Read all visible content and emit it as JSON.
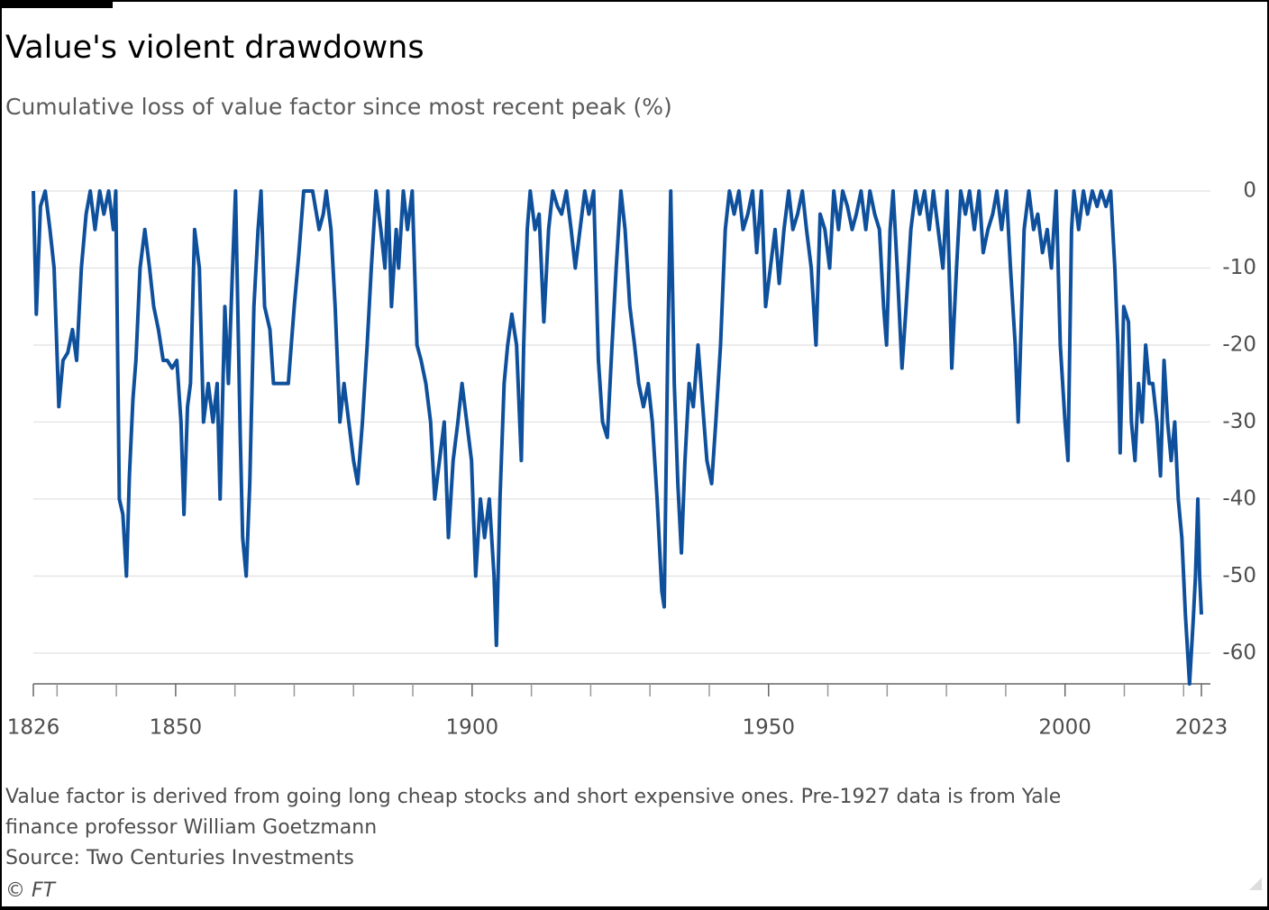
{
  "chart_data": {
    "type": "line",
    "title": "Value's violent drawdowns",
    "subtitle": "Cumulative loss of value factor since most recent peak (%)",
    "notes": [
      "Value factor is derived from going long cheap stocks and short expensive ones. Pre-1927 data is from Yale",
      "finance professor William Goetzmann",
      "Source: Two Centuries Investments"
    ],
    "credit": "© FT",
    "xlim": [
      1826,
      2023
    ],
    "xticks": [
      1826,
      1850,
      1900,
      1950,
      2000,
      2023
    ],
    "xminorticks": [
      1830,
      1840,
      1860,
      1870,
      1880,
      1890,
      1910,
      1920,
      1930,
      1940,
      1960,
      1970,
      1980,
      1990,
      2010,
      2020
    ],
    "ylim": [
      -64,
      0
    ],
    "yticks": [
      0,
      -10,
      -20,
      -30,
      -40,
      -50,
      -60
    ],
    "grid": true,
    "series": [
      {
        "color": "#0f509c",
        "x": [
          1826.0,
          1826.5,
          1827.2,
          1828.0,
          1828.8,
          1829.5,
          1830.3,
          1831.0,
          1831.8,
          1832.6,
          1833.3,
          1834.1,
          1834.9,
          1835.6,
          1836.4,
          1837.2,
          1837.9,
          1838.7,
          1839.5,
          1839.9,
          1840.5,
          1841.1,
          1841.7,
          1842.2,
          1842.8,
          1843.3,
          1844.0,
          1844.8,
          1845.6,
          1846.3,
          1847.1,
          1847.9,
          1848.6,
          1849.4,
          1850.2,
          1850.9,
          1851.4,
          1852.0,
          1852.5,
          1853.2,
          1854.0,
          1854.7,
          1855.5,
          1856.3,
          1857.0,
          1857.5,
          1858.3,
          1858.9,
          1859.6,
          1860.1,
          1860.9,
          1861.3,
          1861.9,
          1862.5,
          1863.2,
          1863.9,
          1864.4,
          1865.0,
          1865.9,
          1866.5,
          1867.7,
          1869.0,
          1870.0,
          1870.8,
          1871.6,
          1873.1,
          1874.2,
          1874.9,
          1875.4,
          1876.2,
          1876.9,
          1877.7,
          1878.4,
          1879.2,
          1880.0,
          1880.7,
          1881.5,
          1882.3,
          1883.0,
          1883.8,
          1884.6,
          1885.3,
          1885.8,
          1886.4,
          1887.2,
          1887.6,
          1888.4,
          1889.1,
          1889.9,
          1890.7,
          1891.4,
          1892.2,
          1893.0,
          1893.7,
          1894.5,
          1895.3,
          1896.0,
          1896.8,
          1897.6,
          1898.3,
          1899.1,
          1899.9,
          1900.6,
          1901.4,
          1902.1,
          1902.9,
          1903.7,
          1904.1,
          1904.7,
          1905.4,
          1906.0,
          1906.7,
          1907.5,
          1908.3,
          1908.7,
          1909.3,
          1909.8,
          1910.6,
          1911.3,
          1912.1,
          1912.9,
          1913.6,
          1914.4,
          1915.1,
          1915.9,
          1916.7,
          1917.4,
          1918.2,
          1919.0,
          1919.7,
          1920.5,
          1921.3,
          1922.0,
          1922.8,
          1923.6,
          1924.3,
          1925.1,
          1925.8,
          1926.6,
          1927.4,
          1928.1,
          1928.9,
          1929.7,
          1930.4,
          1931.2,
          1932.0,
          1932.4,
          1933.0,
          1933.5,
          1934.1,
          1934.7,
          1935.3,
          1935.9,
          1936.6,
          1937.3,
          1938.1,
          1938.8,
          1939.6,
          1940.4,
          1941.1,
          1941.9,
          1942.7,
          1943.4,
          1944.2,
          1945.0,
          1945.7,
          1946.5,
          1947.3,
          1948.0,
          1948.8,
          1949.5,
          1950.3,
          1951.1,
          1951.8,
          1952.6,
          1953.4,
          1954.1,
          1954.9,
          1955.7,
          1956.4,
          1957.2,
          1958.0,
          1958.7,
          1959.5,
          1960.3,
          1961.0,
          1961.8,
          1962.5,
          1963.3,
          1964.1,
          1964.8,
          1965.6,
          1966.4,
          1967.1,
          1967.9,
          1968.7,
          1969.4,
          1969.9,
          1970.5,
          1971.0,
          1971.7,
          1972.5,
          1973.2,
          1974.0,
          1974.8,
          1975.5,
          1976.3,
          1977.1,
          1977.8,
          1978.6,
          1979.4,
          1980.1,
          1980.9,
          1981.7,
          1982.4,
          1983.2,
          1983.9,
          1984.7,
          1985.5,
          1986.2,
          1987.0,
          1987.8,
          1988.5,
          1989.3,
          1990.1,
          1990.8,
          1991.6,
          1992.1,
          1992.7,
          1993.1,
          1993.9,
          1994.7,
          1995.4,
          1996.2,
          1997.0,
          1997.7,
          1998.5,
          1999.2,
          2000.0,
          2000.5,
          2001.1,
          2001.5,
          2002.3,
          2003.1,
          2003.8,
          2004.6,
          2005.4,
          2006.1,
          2006.9,
          2007.7,
          2008.4,
          2008.9,
          2009.3,
          2009.9,
          2010.7,
          2011.2,
          2011.8,
          2012.4,
          2013.0,
          2013.6,
          2014.2,
          2014.8,
          2015.5,
          2016.1,
          2016.7,
          2017.3,
          2017.9,
          2018.5,
          2019.1,
          2019.7,
          2020.3,
          2021.0,
          2021.6,
          2022.0,
          2022.4,
          2022.7,
          2023.0
        ],
        "values": [
          0,
          -16,
          -2,
          0,
          -5,
          -10,
          -28,
          -22,
          -21,
          -18,
          -22,
          -10,
          -3,
          0,
          -5,
          0,
          -3,
          0,
          -5,
          0,
          -40,
          -42,
          -50,
          -37,
          -27,
          -22,
          -10,
          -5,
          -10,
          -15,
          -18,
          -22,
          -22,
          -23,
          -22,
          -30,
          -42,
          -28,
          -25,
          -5,
          -10,
          -30,
          -25,
          -30,
          -25,
          -40,
          -15,
          -25,
          -10,
          0,
          -32,
          -45,
          -50,
          -38,
          -15,
          -5,
          0,
          -15,
          -18,
          -25,
          -25,
          -25,
          -15,
          -8,
          0,
          0,
          -5,
          -3,
          0,
          -5,
          -15,
          -30,
          -25,
          -30,
          -35,
          -38,
          -30,
          -20,
          -10,
          0,
          -5,
          -10,
          0,
          -15,
          -5,
          -10,
          0,
          -5,
          0,
          -20,
          -22,
          -25,
          -30,
          -40,
          -35,
          -30,
          -45,
          -35,
          -30,
          -25,
          -30,
          -35,
          -50,
          -40,
          -45,
          -40,
          -50,
          -59,
          -40,
          -25,
          -20,
          -16,
          -20,
          -35,
          -20,
          -5,
          0,
          -5,
          -3,
          -17,
          -5,
          0,
          -2,
          -3,
          0,
          -5,
          -10,
          -5,
          0,
          -3,
          0,
          -22,
          -30,
          -32,
          -20,
          -10,
          0,
          -5,
          -15,
          -20,
          -25,
          -28,
          -25,
          -30,
          -40,
          -52,
          -54,
          -20,
          0,
          -25,
          -38,
          -47,
          -35,
          -25,
          -28,
          -20,
          -27,
          -35,
          -38,
          -30,
          -20,
          -5,
          0,
          -3,
          0,
          -5,
          -3,
          0,
          -8,
          0,
          -15,
          -10,
          -5,
          -12,
          -5,
          0,
          -5,
          -3,
          0,
          -5,
          -10,
          -20,
          -3,
          -5,
          -10,
          0,
          -5,
          0,
          -2,
          -5,
          -3,
          0,
          -5,
          0,
          -3,
          -5,
          -15,
          -20,
          -5,
          0,
          -10,
          -23,
          -15,
          -5,
          0,
          -3,
          0,
          -5,
          0,
          -5,
          -10,
          0,
          -23,
          -10,
          0,
          -3,
          0,
          -5,
          0,
          -8,
          -5,
          -3,
          0,
          -5,
          0,
          -10,
          -20,
          -30,
          -15,
          -5,
          0,
          -5,
          -3,
          -8,
          -5,
          -10,
          0,
          -20,
          -30,
          -35,
          -5,
          0,
          -5,
          0,
          -3,
          0,
          -2,
          0,
          -2,
          0,
          -10,
          -20,
          -34,
          -15,
          -17,
          -30,
          -35,
          -25,
          -30,
          -20,
          -25,
          -25,
          -30,
          -37,
          -22,
          -30,
          -35,
          -30,
          -40,
          -45,
          -55,
          -64,
          -56,
          -50,
          -40,
          -50,
          -55
        ]
      }
    ]
  }
}
